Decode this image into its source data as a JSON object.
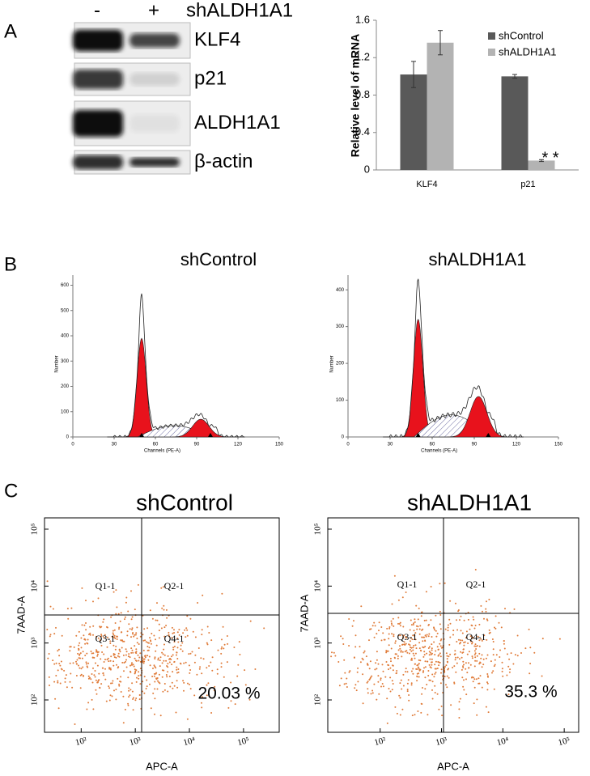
{
  "panel_labels": [
    "A",
    "B",
    "C"
  ],
  "blot": {
    "lanes": [
      "-",
      "+"
    ],
    "condition": "shALDH1A1",
    "proteins": [
      "KLF4",
      "p21",
      "ALDH1A1",
      "β-actin"
    ]
  },
  "chart_data": {
    "type": "bar",
    "ylabel": "Relative level of mRNA",
    "categories": [
      "KLF4",
      "p21"
    ],
    "series": [
      {
        "name": "shControl",
        "color": "#595959",
        "values": [
          1.02,
          1.0
        ],
        "errors": [
          0.14,
          0.02
        ]
      },
      {
        "name": "shALDH1A1",
        "color": "#b3b3b3",
        "values": [
          1.36,
          0.1
        ],
        "errors": [
          0.13,
          0.01
        ]
      }
    ],
    "ylim": [
      0,
      1.6
    ],
    "yticks": [
      0,
      0.4,
      0.8,
      1.2,
      1.6
    ],
    "legend": "top-right",
    "annotation": "* *"
  },
  "histograms": [
    {
      "title": "shControl",
      "xlabel": "Channels (PE-A)",
      "ylabel": "Number",
      "xlim": [
        0,
        150
      ],
      "xticks": [
        0,
        30,
        60,
        90,
        120,
        150
      ],
      "ylim": [
        0,
        640
      ],
      "yticks": [
        0,
        100,
        200,
        300,
        400,
        500,
        600
      ]
    },
    {
      "title": "shALDH1A1",
      "xlabel": "Channels (PE-A)",
      "ylabel": "Number",
      "xlim": [
        0,
        150
      ],
      "xticks": [
        0,
        30,
        60,
        90,
        120,
        150
      ],
      "ylim": [
        0,
        440
      ],
      "yticks": [
        0,
        100,
        200,
        300,
        400
      ]
    }
  ],
  "dotplots": [
    {
      "title": "shControl",
      "xlabel": "APC-A",
      "ylabel": "7AAD-A",
      "log": true,
      "xlim": [
        21,
        457000
      ],
      "ylim": [
        27,
        158000
      ],
      "xticks": [
        {
          "value": 100,
          "label": "10²"
        },
        {
          "value": 1000,
          "label": "10³"
        },
        {
          "value": 10000,
          "label": "10⁴"
        },
        {
          "value": 100000,
          "label": "10⁵"
        }
      ],
      "yticks": [
        {
          "value": 100,
          "label": "10²"
        },
        {
          "value": 1000,
          "label": "10³"
        },
        {
          "value": 10000,
          "label": "10⁴"
        },
        {
          "value": 100000,
          "label": "10⁵"
        }
      ],
      "quadrants": [
        "Q1-1",
        "Q2-1",
        "Q3-1",
        "Q4-1"
      ],
      "percent_label": "20.03 %"
    },
    {
      "title": "shALDH1A1",
      "xlabel": "APC-A",
      "ylabel": "7AAD-A",
      "log": true,
      "xlim": [
        14,
        172000
      ],
      "ylim": [
        27,
        158000
      ],
      "xticks": [
        {
          "value": 100,
          "label": "10²"
        },
        {
          "value": 1000,
          "label": "10³"
        },
        {
          "value": 10000,
          "label": "10⁴"
        },
        {
          "value": 100000,
          "label": "10⁵"
        }
      ],
      "yticks": [
        {
          "value": 100,
          "label": "10²"
        },
        {
          "value": 1000,
          "label": "10³"
        },
        {
          "value": 10000,
          "label": "10⁴"
        },
        {
          "value": 100000,
          "label": "10⁵"
        }
      ],
      "quadrants": [
        "Q1-1",
        "Q2-1",
        "Q3-1",
        "Q4-1"
      ],
      "percent_label": "35.3 %"
    }
  ]
}
